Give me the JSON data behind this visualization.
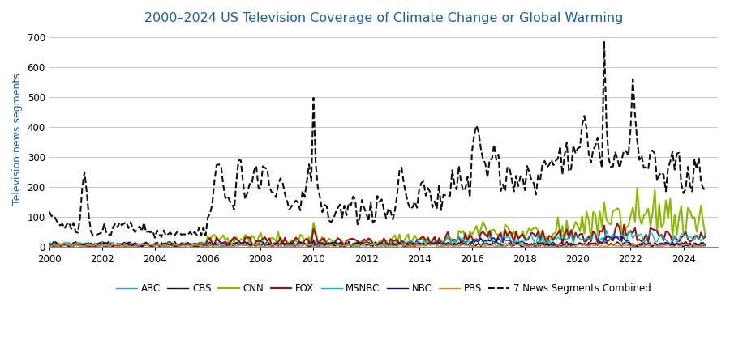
{
  "title": "2000–2024 US Television Coverage of Climate Change or Global Warming",
  "ylabel": "Television news segments",
  "xlabel": "",
  "ylim": [
    0,
    720
  ],
  "yticks": [
    0,
    100,
    200,
    300,
    400,
    500,
    600,
    700
  ],
  "xlim_start": 2000.0,
  "xlim_end": 2025.3,
  "xtick_years": [
    2000,
    2002,
    2004,
    2006,
    2008,
    2010,
    2012,
    2014,
    2016,
    2018,
    2020,
    2022,
    2024
  ],
  "title_color": "#1a5fa8",
  "ylabel_color": "#1a5fa8",
  "background_color": "#ffffff",
  "grid_color": "#c8c8c8",
  "legend_labels": [
    "ABC",
    "CBS",
    "CNN",
    "FOX",
    "MSNBC",
    "NBC",
    "PBS",
    "7 News Segments Combined"
  ],
  "legend_colors": [
    "#3399ff",
    "#111111",
    "#88bb00",
    "#991111",
    "#00bbcc",
    "#220077",
    "#ff8800",
    "#111111"
  ],
  "legend_linestyles": [
    "-",
    "-",
    "-",
    "-",
    "-",
    "-",
    "-",
    "--"
  ],
  "line_widths": [
    1.0,
    1.0,
    1.5,
    1.5,
    1.0,
    1.0,
    1.0,
    1.5
  ]
}
